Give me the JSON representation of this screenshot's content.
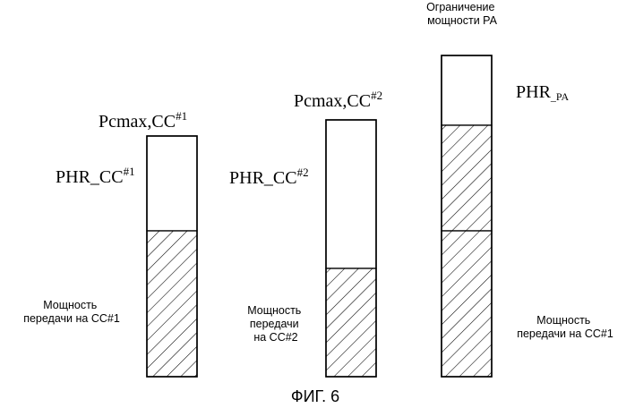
{
  "figure_caption": "ФИГ. 6",
  "bars": [
    {
      "id": "cc1",
      "top_label_main": "Pcmax,CC",
      "top_label_sup": "#1",
      "phr_label_main": "PHR_CC",
      "phr_label_sup": "#1",
      "power_label_lines": [
        "Мощность",
        "передачи на CC#1"
      ]
    },
    {
      "id": "cc2",
      "top_label_main": "Pcmax,CC",
      "top_label_sup": "#2",
      "phr_label_main": "PHR_CC",
      "phr_label_sup": "#2",
      "power_label_lines": [
        "Мощность",
        "передачи",
        "на CC#2"
      ]
    },
    {
      "id": "pa",
      "top_label_lines": [
        "Ограничение",
        "мощности PA"
      ],
      "phr_label_main": "PHR",
      "phr_label_sub": "_PA",
      "power_label_lines": [
        "Мощность",
        "передачи на CC#1"
      ]
    }
  ]
}
